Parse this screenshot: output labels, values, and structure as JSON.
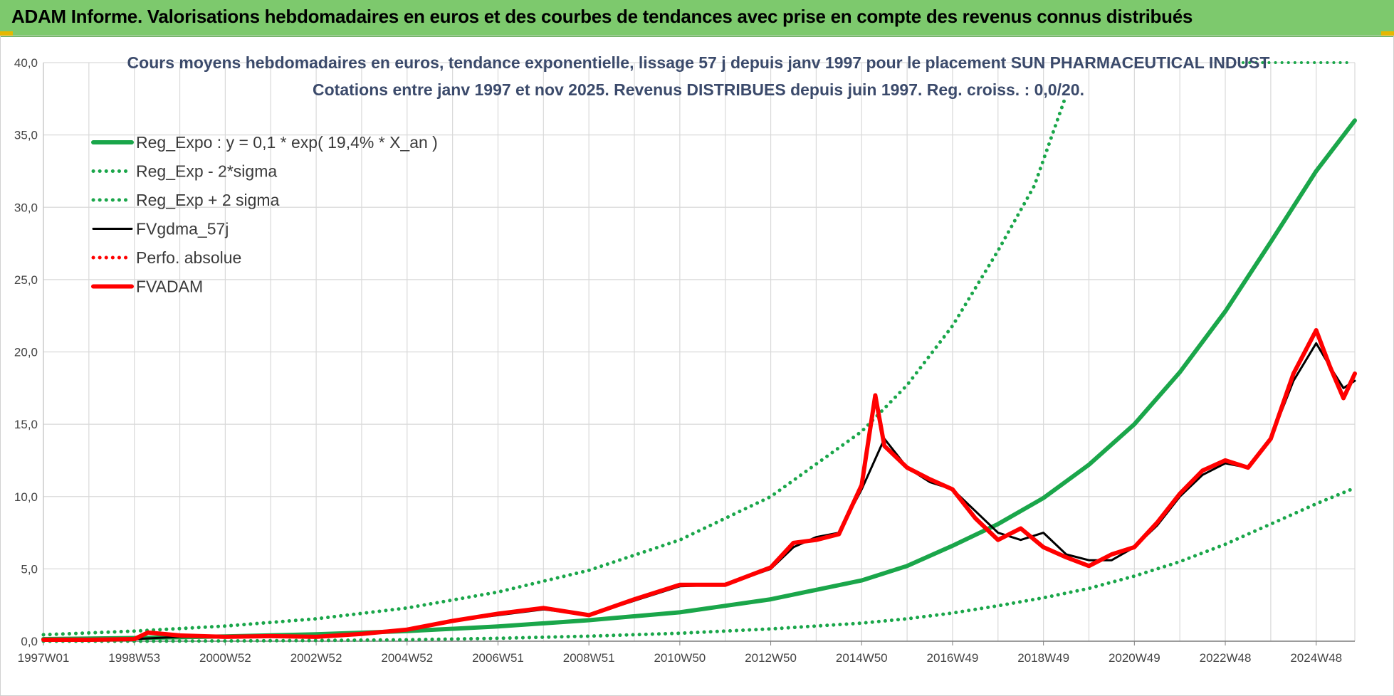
{
  "header": {
    "title": "ADAM Informe. Valorisations hebdomadaires en euros et des courbes de tendances avec prise en compte des revenus connus distribués"
  },
  "colors": {
    "header_bg": "#7dc96d",
    "regression": "#1aa64a",
    "fvgdma": "#000000",
    "fvadam": "#ff0000",
    "grid": "#d9d9d9"
  },
  "chart_data": {
    "type": "line",
    "title_line1": "Cours moyens hebdomadaires en euros, tendance exponentielle, lissage 57 j depuis janv 1997 pour le placement SUN PHARMACEUTICAL INDUST",
    "title_line2": "Cotations entre janv 1997 et nov 2025. Revenus DISTRIBUES depuis juin 1997. Reg. croiss. : 0,0/20.",
    "xlabel": "",
    "ylabel": "",
    "ylim": [
      0,
      40
    ],
    "xlim": [
      1997.0,
      2025.85
    ],
    "y_ticks": [
      "0,0",
      "5,0",
      "10,0",
      "15,0",
      "20,0",
      "25,0",
      "30,0",
      "35,0",
      "40,0"
    ],
    "x_ticks": [
      {
        "label": "1997W01",
        "x": 1997.0
      },
      {
        "label": "1998W53",
        "x": 1999.0
      },
      {
        "label": "2000W52",
        "x": 2001.0
      },
      {
        "label": "2002W52",
        "x": 2003.0
      },
      {
        "label": "2004W52",
        "x": 2005.0
      },
      {
        "label": "2006W51",
        "x": 2007.0
      },
      {
        "label": "2008W51",
        "x": 2009.0
      },
      {
        "label": "2010W50",
        "x": 2011.0
      },
      {
        "label": "2012W50",
        "x": 2013.0
      },
      {
        "label": "2014W50",
        "x": 2015.0
      },
      {
        "label": "2016W49",
        "x": 2017.0
      },
      {
        "label": "2018W49",
        "x": 2019.0
      },
      {
        "label": "2020W49",
        "x": 2021.0
      },
      {
        "label": "2022W48",
        "x": 2023.0
      },
      {
        "label": "2024W48",
        "x": 2025.0
      }
    ],
    "legend_position": "top-left",
    "grid": true,
    "series": [
      {
        "name": "Reg_Expo : y = 0,1 * exp( 19,4% *  X_an )",
        "style": "solid-thick",
        "color": "#1aa64a",
        "x": [
          1997.0,
          1999.0,
          2001.0,
          2003.0,
          2005.0,
          2007.0,
          2009.0,
          2011.0,
          2013.0,
          2015.0,
          2016.0,
          2017.0,
          2018.0,
          2019.0,
          2020.0,
          2021.0,
          2022.0,
          2023.0,
          2024.0,
          2025.0,
          2025.85
        ],
        "y": [
          0.15,
          0.22,
          0.33,
          0.48,
          0.7,
          1.02,
          1.45,
          2.0,
          2.9,
          4.2,
          5.2,
          6.6,
          8.1,
          9.9,
          12.2,
          15.0,
          18.6,
          22.8,
          27.6,
          32.5,
          36.0
        ]
      },
      {
        "name": "Reg_Exp - 2*sigma",
        "style": "dotted",
        "color": "#1aa64a",
        "x": [
          1997.0,
          1999.0,
          2001.0,
          2003.0,
          2005.0,
          2007.0,
          2009.0,
          2011.0,
          2013.0,
          2015.0,
          2016.0,
          2017.0,
          2018.0,
          2019.0,
          2020.0,
          2021.0,
          2022.0,
          2023.0,
          2024.0,
          2025.0,
          2025.85
        ],
        "y": [
          0.0,
          0.0,
          0.02,
          0.05,
          0.1,
          0.2,
          0.35,
          0.55,
          0.85,
          1.25,
          1.55,
          1.95,
          2.45,
          3.0,
          3.65,
          4.5,
          5.5,
          6.7,
          8.1,
          9.5,
          10.6
        ]
      },
      {
        "name": "Reg_Exp + 2 sigma",
        "style": "dotted",
        "color": "#1aa64a",
        "x": [
          1997.0,
          1999.0,
          2001.0,
          2003.0,
          2005.0,
          2007.0,
          2009.0,
          2011.0,
          2013.0,
          2015.0,
          2016.0,
          2017.0,
          2018.0,
          2018.8,
          2019.47
        ],
        "y": [
          0.45,
          0.7,
          1.05,
          1.55,
          2.3,
          3.4,
          4.9,
          7.0,
          10.0,
          14.5,
          17.7,
          21.8,
          27.0,
          31.5,
          37.5
        ]
      },
      {
        "name": "FVgdma_57j",
        "style": "solid",
        "color": "#000000",
        "x": [
          1997.0,
          1998.0,
          1999.0,
          2000.0,
          2001.0,
          2002.0,
          2003.0,
          2004.0,
          2005.0,
          2006.0,
          2007.0,
          2008.0,
          2009.0,
          2010.0,
          2011.0,
          2012.0,
          2013.0,
          2013.5,
          2014.0,
          2014.5,
          2015.0,
          2015.5,
          2016.0,
          2016.5,
          2017.0,
          2017.5,
          2018.0,
          2018.5,
          2019.0,
          2019.5,
          2020.0,
          2020.5,
          2021.0,
          2021.5,
          2022.0,
          2022.5,
          2023.0,
          2023.5,
          2024.0,
          2024.5,
          2025.0,
          2025.3,
          2025.6,
          2025.85
        ],
        "y": [
          0.1,
          0.1,
          0.15,
          0.3,
          0.3,
          0.35,
          0.3,
          0.5,
          0.8,
          1.4,
          1.8,
          2.2,
          1.8,
          2.8,
          3.8,
          3.9,
          5.0,
          6.5,
          7.2,
          7.5,
          10.5,
          14.0,
          12.0,
          11.0,
          10.5,
          9.0,
          7.5,
          7.0,
          7.5,
          6.0,
          5.6,
          5.6,
          6.5,
          8.0,
          10.0,
          11.5,
          12.3,
          12.0,
          14.0,
          18.0,
          20.6,
          19.0,
          17.5,
          18.0
        ]
      },
      {
        "name": "Perfo. absolue",
        "style": "dotted",
        "color": "#ff0000",
        "x": [],
        "y": []
      },
      {
        "name": "FVADAM",
        "style": "solid-thick",
        "color": "#ff0000",
        "x": [
          1997.0,
          1998.0,
          1999.0,
          1999.3,
          2000.0,
          2001.0,
          2002.0,
          2003.0,
          2004.0,
          2005.0,
          2006.0,
          2007.0,
          2008.0,
          2009.0,
          2010.0,
          2011.0,
          2012.0,
          2013.0,
          2013.5,
          2014.0,
          2014.5,
          2015.0,
          2015.3,
          2015.5,
          2016.0,
          2016.5,
          2017.0,
          2017.5,
          2018.0,
          2018.5,
          2019.0,
          2019.5,
          2020.0,
          2020.5,
          2021.0,
          2021.5,
          2022.0,
          2022.5,
          2023.0,
          2023.5,
          2024.0,
          2024.5,
          2025.0,
          2025.3,
          2025.6,
          2025.85
        ],
        "y": [
          0.1,
          0.1,
          0.15,
          0.6,
          0.4,
          0.3,
          0.35,
          0.3,
          0.5,
          0.8,
          1.4,
          1.9,
          2.3,
          1.8,
          2.9,
          3.9,
          3.9,
          5.1,
          6.8,
          7.0,
          7.4,
          10.8,
          17.0,
          13.5,
          12.0,
          11.2,
          10.5,
          8.5,
          7.0,
          7.8,
          6.5,
          5.8,
          5.2,
          6.0,
          6.5,
          8.2,
          10.2,
          11.8,
          12.5,
          12.0,
          14.0,
          18.5,
          21.5,
          19.0,
          16.8,
          18.5
        ]
      }
    ]
  }
}
